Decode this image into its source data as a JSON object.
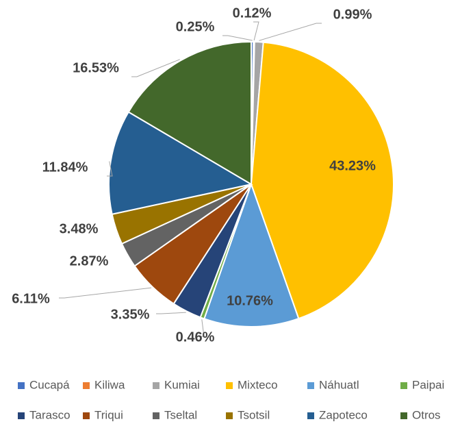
{
  "chart_data": {
    "type": "pie",
    "categories": [
      "Cucapá",
      "Kiliwa",
      "Kumiai",
      "Mixteco",
      "Náhuatl",
      "Paipai",
      "Tarasco",
      "Triqui",
      "Tseltal",
      "Tsotsil",
      "Zapoteco",
      "Otros"
    ],
    "values": [
      0.25,
      0.12,
      0.99,
      43.23,
      10.76,
      0.46,
      3.35,
      6.11,
      2.87,
      3.48,
      11.84,
      16.53
    ],
    "value_labels": [
      "0.25%",
      "0.12%",
      "0.99%",
      "43.23%",
      "10.76%",
      "0.46%",
      "3.35%",
      "6.11%",
      "2.87%",
      "3.48%",
      "11.84%",
      "16.53%"
    ],
    "colors": [
      "#4472c4",
      "#ed7d31",
      "#a5a5a5",
      "#ffc000",
      "#5b9bd5",
      "#70ad47",
      "#264478",
      "#9e480e",
      "#636363",
      "#997300",
      "#255e91",
      "#43682b"
    ],
    "legend": "bottom"
  }
}
